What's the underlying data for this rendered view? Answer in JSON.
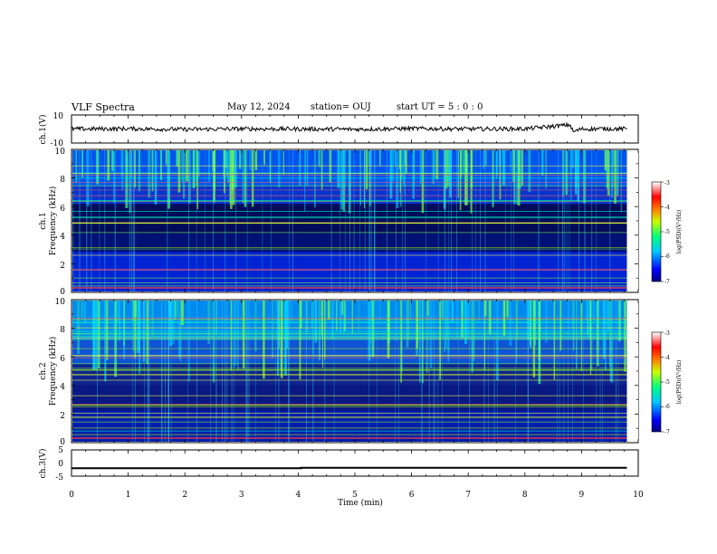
{
  "header": {
    "title": "VLF Spectra",
    "date": "May 12, 2024",
    "station": "station= OUJ",
    "start": "start  UT  =   5 : 0  : 0"
  },
  "colors": {
    "spectrogram_low": "#000060",
    "spectrogram_mid": "#00c8ff",
    "spectrogram_high": "#ff0000",
    "trace": "#000000"
  },
  "chart_data": [
    {
      "type": "line",
      "id": "ch1_waveform",
      "ylabel": "ch.1(V)",
      "ylim": [
        -10,
        10
      ],
      "ytick_labels": [
        "10",
        "-10"
      ],
      "x_range": [
        0,
        10
      ],
      "series": [
        {
          "x": [
            0,
            1,
            2,
            3,
            4,
            5,
            6,
            7,
            8,
            8.8,
            8.85,
            9,
            9.5,
            9.8
          ],
          "y": [
            0,
            0.2,
            -0.3,
            0.1,
            0,
            -0.2,
            0.3,
            0,
            0.1,
            3,
            -2,
            0,
            0.2,
            0
          ]
        }
      ]
    },
    {
      "type": "heatmap",
      "id": "ch1_spectrogram",
      "ylabel": "ch.1\nFrequency (kHz)",
      "ylim": [
        0,
        10
      ],
      "ytick_labels": [
        "0",
        "2",
        "4",
        "6",
        "8",
        "10"
      ],
      "x_range": [
        0,
        9.8
      ],
      "z_label": "log(PSD)(V²/Hz)",
      "zlim": [
        -7,
        -3
      ],
      "colorbar_tick_labels": [
        "-3",
        "-4",
        "-5",
        "-6",
        "-7"
      ]
    },
    {
      "type": "heatmap",
      "id": "ch2_spectrogram",
      "ylabel": "ch.2\nFrequency (kHz)",
      "ylim": [
        0,
        10
      ],
      "ytick_labels": [
        "0",
        "2",
        "4",
        "6",
        "8",
        "10"
      ],
      "x_range": [
        0,
        9.8
      ],
      "z_label": "log(PSD)(V²/Hz)",
      "zlim": [
        -7,
        -3
      ],
      "colorbar_tick_labels": [
        "-3",
        "-4",
        "-5",
        "-6",
        "-7"
      ]
    },
    {
      "type": "line",
      "id": "ch3_trace",
      "ylabel": "ch.3(V)",
      "ylim": [
        -5,
        5
      ],
      "ytick_labels": [
        "5",
        "0",
        "-5"
      ],
      "x_range": [
        0,
        10
      ],
      "series": [
        {
          "x": [
            0,
            4.05,
            4.05,
            9.8
          ],
          "y": [
            -2,
            -2,
            -1.8,
            -1.8
          ]
        }
      ]
    }
  ],
  "x_axis": {
    "label": "Time  (min)",
    "range": [
      0,
      10
    ],
    "tick_labels": [
      "0",
      "1",
      "2",
      "3",
      "4",
      "5",
      "6",
      "7",
      "8",
      "9",
      "10"
    ]
  }
}
